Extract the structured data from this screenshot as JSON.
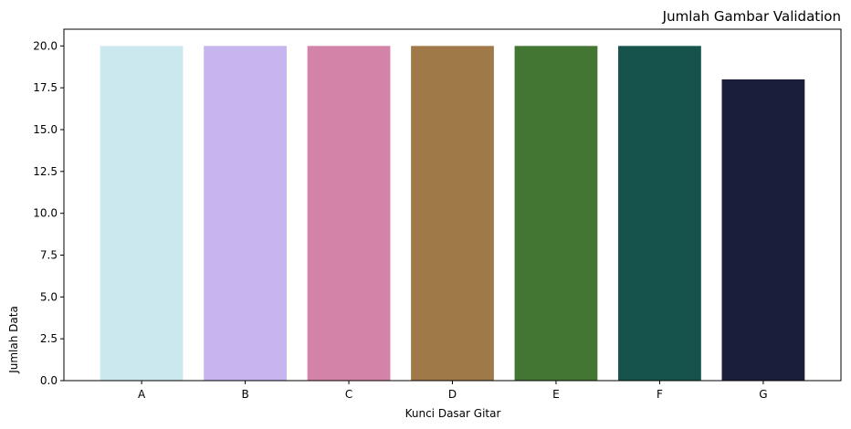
{
  "chart_data": {
    "type": "bar",
    "title": "Jumlah Gambar Validation",
    "xlabel": "Kunci Dasar Gitar",
    "ylabel": "Jumlah Data",
    "categories": [
      "A",
      "B",
      "C",
      "D",
      "E",
      "F",
      "G"
    ],
    "values": [
      20,
      20,
      20,
      20,
      20,
      20,
      18
    ],
    "colors": [
      "#cbe8ef",
      "#c6b5ee",
      "#d383a8",
      "#a07949",
      "#447633",
      "#17534d",
      "#1a1e3b"
    ],
    "ylim": [
      0,
      21
    ],
    "yticks": [
      "0.0",
      "2.5",
      "5.0",
      "7.5",
      "10.0",
      "12.5",
      "15.0",
      "17.5",
      "20.0"
    ],
    "grid": false,
    "title_position": "top-right"
  }
}
